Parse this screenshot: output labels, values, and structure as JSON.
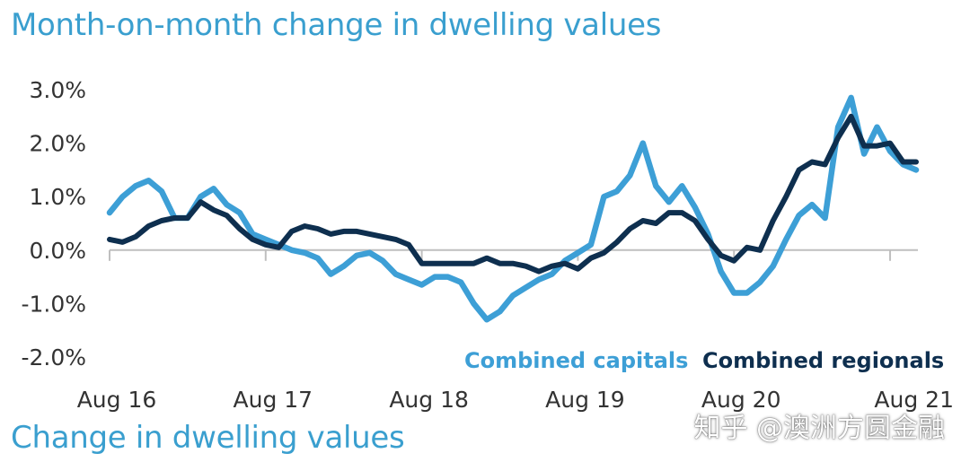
{
  "header": {
    "title": "Month-on-month change in dwelling values"
  },
  "footer": {
    "subtitle": "Change in dwelling values"
  },
  "watermark": {
    "text": "知乎 @澳洲方圆金融"
  },
  "colors": {
    "capitals": "#3d9fd6",
    "regionals": "#0e2f4f",
    "title": "#3a9fcf",
    "axis": "#bfbfbf"
  },
  "chart_data": {
    "type": "line",
    "ylim": [
      -2.0,
      3.0
    ],
    "y_ticks": [
      {
        "value": 3.0,
        "label": "3.0%"
      },
      {
        "value": 2.0,
        "label": "2.0%"
      },
      {
        "value": 1.0,
        "label": "1.0%"
      },
      {
        "value": 0.0,
        "label": "0.0%"
      },
      {
        "value": -1.0,
        "label": "-1.0%"
      },
      {
        "value": -2.0,
        "label": "-2.0%"
      }
    ],
    "x_ticks": [
      {
        "index": 0,
        "label": "Aug 16"
      },
      {
        "index": 12,
        "label": "Aug 17"
      },
      {
        "index": 24,
        "label": "Aug 18"
      },
      {
        "index": 36,
        "label": "Aug 19"
      },
      {
        "index": 48,
        "label": "Aug 20"
      },
      {
        "index": 60,
        "label": "Aug 21"
      }
    ],
    "legend_position": "bottom-right",
    "series": [
      {
        "name": "Combined capitals",
        "key": "capitals",
        "values": [
          0.7,
          1.0,
          1.2,
          1.3,
          1.1,
          0.6,
          0.6,
          1.0,
          1.15,
          0.85,
          0.7,
          0.3,
          0.2,
          0.1,
          0.0,
          -0.05,
          -0.15,
          -0.45,
          -0.3,
          -0.1,
          -0.05,
          -0.2,
          -0.45,
          -0.55,
          -0.65,
          -0.5,
          -0.5,
          -0.6,
          -1.0,
          -1.3,
          -1.15,
          -0.85,
          -0.7,
          -0.55,
          -0.45,
          -0.2,
          -0.05,
          0.1,
          1.0,
          1.1,
          1.4,
          2.0,
          1.2,
          0.9,
          1.2,
          0.8,
          0.3,
          -0.4,
          -0.8,
          -0.8,
          -0.6,
          -0.3,
          0.2,
          0.65,
          0.85,
          0.6,
          2.3,
          2.85,
          1.8,
          2.3,
          1.85,
          1.6,
          1.5
        ]
      },
      {
        "name": "Combined regionals",
        "key": "regionals",
        "values": [
          0.2,
          0.15,
          0.25,
          0.45,
          0.55,
          0.6,
          0.6,
          0.9,
          0.75,
          0.65,
          0.4,
          0.2,
          0.1,
          0.05,
          0.35,
          0.45,
          0.4,
          0.3,
          0.35,
          0.35,
          0.3,
          0.25,
          0.2,
          0.1,
          -0.25,
          -0.25,
          -0.25,
          -0.25,
          -0.25,
          -0.15,
          -0.25,
          -0.25,
          -0.3,
          -0.4,
          -0.3,
          -0.25,
          -0.35,
          -0.15,
          -0.05,
          0.15,
          0.4,
          0.55,
          0.5,
          0.7,
          0.7,
          0.55,
          0.2,
          -0.1,
          -0.2,
          0.05,
          0.0,
          0.55,
          1.0,
          1.5,
          1.65,
          1.6,
          2.1,
          2.5,
          1.95,
          1.95,
          2.0,
          1.65,
          1.65
        ]
      }
    ]
  }
}
